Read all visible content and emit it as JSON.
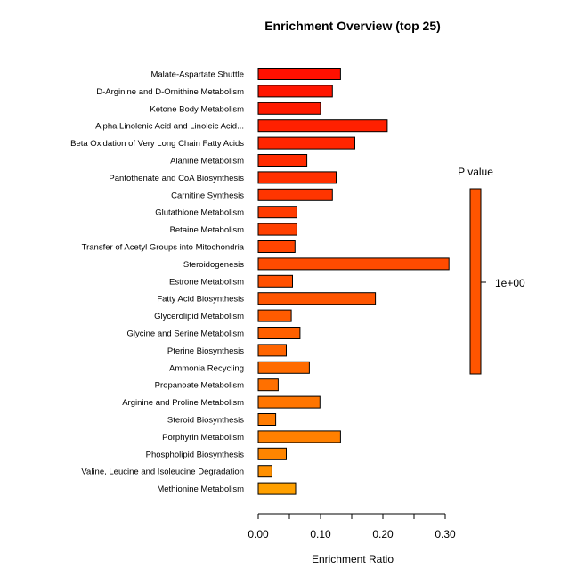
{
  "chart_data": {
    "type": "bar",
    "orientation": "horizontal",
    "title": "Enrichment Overview (top 25)",
    "xlabel": "Enrichment Ratio",
    "ylabel": "",
    "xlim": [
      0,
      0.3
    ],
    "xticks": [
      0.0,
      0.1,
      0.2,
      0.3
    ],
    "xtick_labels": [
      "0.00",
      "0.10",
      "0.20",
      "0.30"
    ],
    "grid": false,
    "categories": [
      "Malate-Aspartate Shuttle",
      "D-Arginine and D-Ornithine Metabolism",
      "Ketone Body Metabolism",
      "Alpha Linolenic Acid and Linoleic Acid...",
      "Beta Oxidation of Very Long Chain Fatty Acids",
      "Alanine Metabolism",
      "Pantothenate and CoA Biosynthesis",
      "Carnitine Synthesis",
      "Glutathione Metabolism",
      "Betaine Metabolism",
      "Transfer of Acetyl Groups into Mitochondria",
      "Steroidogenesis",
      "Estrone Metabolism",
      "Fatty Acid Biosynthesis",
      "Glycerolipid Metabolism",
      "Glycine and Serine Metabolism",
      "Pterine Biosynthesis",
      "Ammonia Recycling",
      "Propanoate Metabolism",
      "Arginine and Proline Metabolism",
      "Steroid Biosynthesis",
      "Porphyrin Metabolism",
      "Phospholipid Biosynthesis",
      "Valine, Leucine and Isoleucine Degradation",
      "Methionine Metabolism"
    ],
    "values": [
      0.132,
      0.119,
      0.1,
      0.207,
      0.155,
      0.078,
      0.125,
      0.119,
      0.062,
      0.062,
      0.059,
      0.306,
      0.055,
      0.188,
      0.053,
      0.067,
      0.045,
      0.082,
      0.032,
      0.099,
      0.028,
      0.132,
      0.045,
      0.022,
      0.06
    ],
    "colors": [
      "#FF1000",
      "#FF1500",
      "#FF1A00",
      "#FF2000",
      "#FF2500",
      "#FF2B00",
      "#FF3000",
      "#FF3500",
      "#FF3B00",
      "#FF4000",
      "#FF4500",
      "#FF4B00",
      "#FF5000",
      "#FF5500",
      "#FF5B00",
      "#FF6000",
      "#FF6500",
      "#FF6B00",
      "#FF7000",
      "#FF7500",
      "#FF7B00",
      "#FF8000",
      "#FF8500",
      "#FF9000",
      "#FFA000"
    ],
    "legend": {
      "title": "P value",
      "label": "1e+00",
      "color": "#FF5500",
      "placement": "right"
    }
  }
}
